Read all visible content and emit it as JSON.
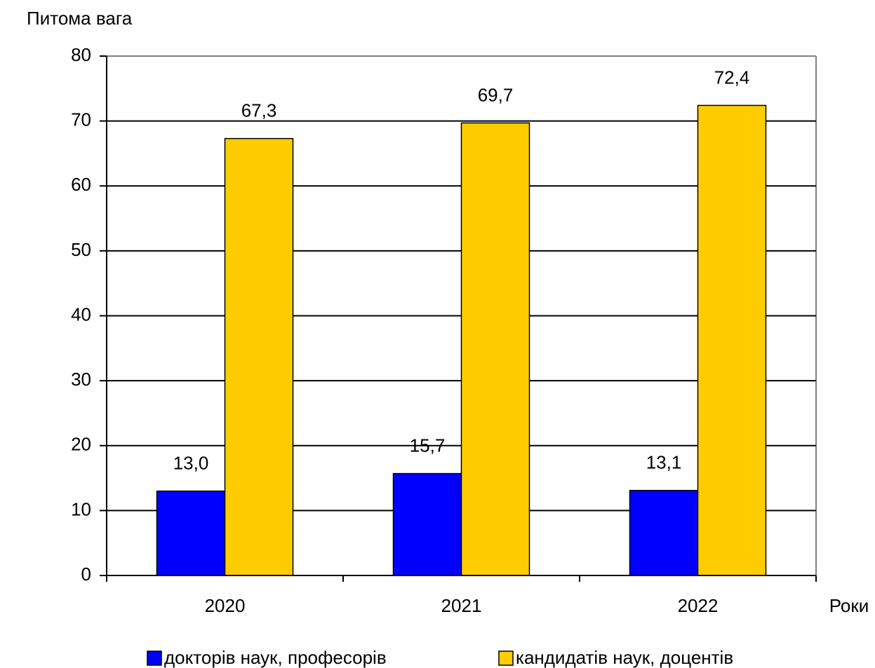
{
  "chart_data": {
    "type": "bar",
    "y_axis_label": "Питома вага",
    "x_axis_label": "Роки",
    "categories": [
      "2020",
      "2021",
      "2022"
    ],
    "series": [
      {
        "name": "докторів наук, професорів",
        "color": "#0000ff",
        "values": [
          13.0,
          15.7,
          13.1
        ],
        "value_labels": [
          "13,0",
          "15,7",
          "13,1"
        ]
      },
      {
        "name": "кандидатів наук, доцентів",
        "color": "#ffcc00",
        "values": [
          67.3,
          69.7,
          72.4
        ],
        "value_labels": [
          "67,3",
          "69,7",
          "72,4"
        ]
      }
    ],
    "ylim": [
      0,
      80
    ],
    "yticks": [
      0,
      10,
      20,
      30,
      40,
      50,
      60,
      70,
      80
    ],
    "grid": true,
    "legend": "bottom"
  }
}
